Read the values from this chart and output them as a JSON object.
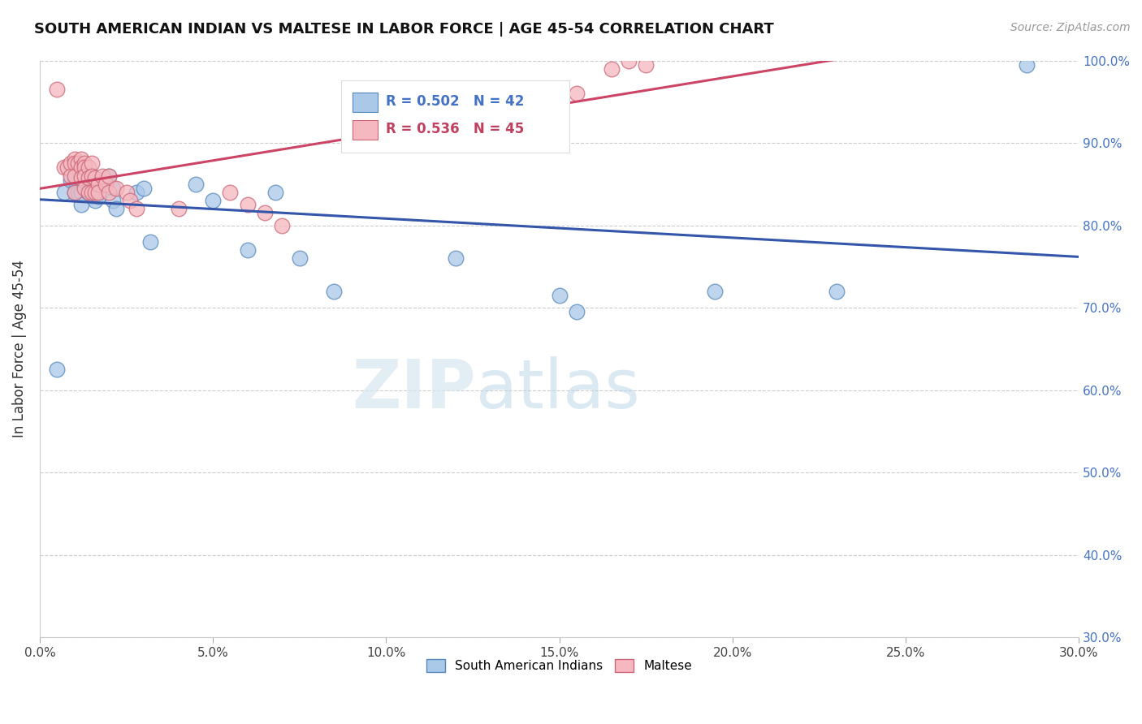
{
  "title": "SOUTH AMERICAN INDIAN VS MALTESE IN LABOR FORCE | AGE 45-54 CORRELATION CHART",
  "source_text": "Source: ZipAtlas.com",
  "ylabel": "In Labor Force | Age 45-54",
  "xlim": [
    0.0,
    0.3
  ],
  "ylim": [
    0.3,
    1.0
  ],
  "xticks": [
    0.0,
    0.05,
    0.1,
    0.15,
    0.2,
    0.25,
    0.3
  ],
  "yticks": [
    0.3,
    0.4,
    0.5,
    0.6,
    0.7,
    0.8,
    0.9,
    1.0
  ],
  "blue_color": "#aac8e8",
  "pink_color": "#f5b8c0",
  "blue_edge_color": "#5588bb",
  "pink_edge_color": "#cc6677",
  "blue_line_color": "#3355aa",
  "pink_line_color": "#cc4466",
  "legend_R_blue": "R = 0.502",
  "legend_N_blue": "N = 42",
  "legend_R_pink": "R = 0.536",
  "legend_N_pink": "N = 45",
  "legend_label_blue": "South American Indians",
  "legend_label_pink": "Maltese",
  "watermark_zip": "ZIP",
  "watermark_atlas": "atlas",
  "blue_x": [
    0.005,
    0.007,
    0.009,
    0.009,
    0.01,
    0.01,
    0.011,
    0.011,
    0.012,
    0.012,
    0.012,
    0.013,
    0.013,
    0.014,
    0.014,
    0.015,
    0.015,
    0.015,
    0.016,
    0.016,
    0.017,
    0.017,
    0.019,
    0.02,
    0.021,
    0.021,
    0.022,
    0.028,
    0.03,
    0.032,
    0.045,
    0.05,
    0.06,
    0.068,
    0.075,
    0.085,
    0.12,
    0.15,
    0.155,
    0.195,
    0.23,
    0.285
  ],
  "blue_y": [
    0.625,
    0.84,
    0.87,
    0.855,
    0.855,
    0.84,
    0.855,
    0.84,
    0.855,
    0.84,
    0.825,
    0.865,
    0.85,
    0.855,
    0.84,
    0.86,
    0.85,
    0.835,
    0.845,
    0.83,
    0.84,
    0.835,
    0.855,
    0.86,
    0.845,
    0.83,
    0.82,
    0.84,
    0.845,
    0.78,
    0.85,
    0.83,
    0.77,
    0.84,
    0.76,
    0.72,
    0.76,
    0.715,
    0.695,
    0.72,
    0.72,
    0.995
  ],
  "pink_x": [
    0.005,
    0.007,
    0.008,
    0.009,
    0.009,
    0.01,
    0.01,
    0.01,
    0.01,
    0.011,
    0.012,
    0.012,
    0.012,
    0.013,
    0.013,
    0.013,
    0.013,
    0.014,
    0.014,
    0.014,
    0.015,
    0.015,
    0.015,
    0.016,
    0.016,
    0.017,
    0.017,
    0.018,
    0.019,
    0.02,
    0.02,
    0.022,
    0.025,
    0.026,
    0.028,
    0.04,
    0.055,
    0.06,
    0.065,
    0.07,
    0.125,
    0.155,
    0.165,
    0.17,
    0.175
  ],
  "pink_y": [
    0.965,
    0.87,
    0.87,
    0.875,
    0.86,
    0.88,
    0.875,
    0.86,
    0.84,
    0.875,
    0.88,
    0.87,
    0.858,
    0.875,
    0.87,
    0.86,
    0.845,
    0.87,
    0.858,
    0.84,
    0.875,
    0.86,
    0.84,
    0.858,
    0.84,
    0.85,
    0.84,
    0.86,
    0.85,
    0.86,
    0.84,
    0.845,
    0.84,
    0.83,
    0.82,
    0.82,
    0.84,
    0.825,
    0.815,
    0.8,
    0.935,
    0.96,
    0.99,
    1.0,
    0.995
  ]
}
